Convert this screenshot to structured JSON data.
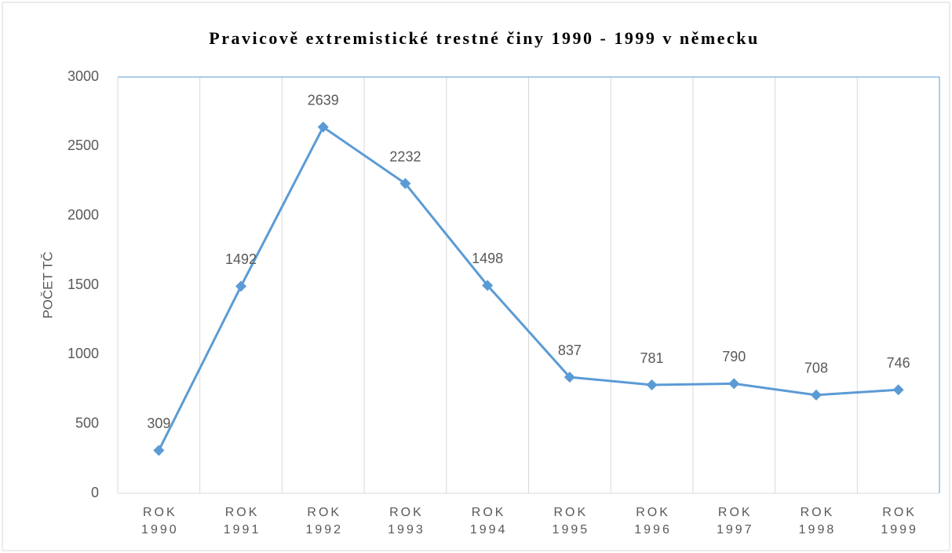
{
  "chart_data": {
    "type": "line",
    "title": "Pravicově extremistické trestné činy 1990 - 1999 v německu",
    "ylabel": "POČET TČ",
    "categories": [
      "ROK 1990",
      "ROK 1991",
      "ROK 1992",
      "ROK 1993",
      "ROK 1994",
      "ROK 1995",
      "ROK 1996",
      "ROK 1997",
      "ROK 1998",
      "ROK 1999"
    ],
    "series": [
      {
        "name": "Počet TČ",
        "color": "#5b9bd5",
        "values": [
          309,
          1492,
          2639,
          2232,
          1498,
          837,
          781,
          790,
          708,
          746
        ]
      }
    ],
    "ylim": [
      0,
      3000
    ],
    "yticks": [
      0,
      500,
      1000,
      1500,
      2000,
      2500,
      3000
    ],
    "xgrid": true
  }
}
